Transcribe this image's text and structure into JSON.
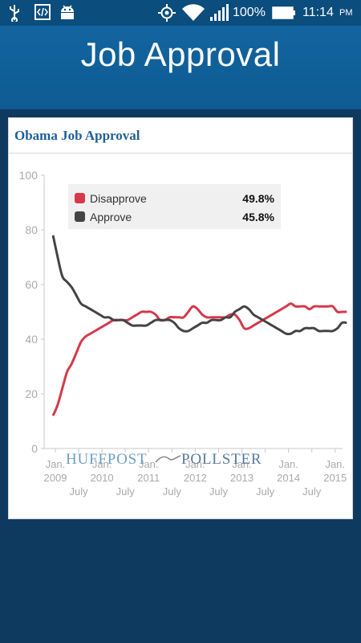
{
  "status_bar": {
    "battery_percent": "100%",
    "time": "11:14",
    "ampm": "PM",
    "icons": [
      "usb-icon",
      "code-icon",
      "android-icon",
      "gps-icon",
      "wifi-icon",
      "signal-icon",
      "battery-icon"
    ]
  },
  "header": {
    "title": "Job Approval"
  },
  "card": {
    "title": "Obama Job Approval"
  },
  "legend": [
    {
      "name": "Disapprove",
      "value": "49.8%",
      "color": "#d5394a"
    },
    {
      "name": "Approve",
      "value": "45.8%",
      "color": "#444444"
    }
  ],
  "watermark": {
    "left": "HUFFPOST",
    "right": "POLLSTER"
  },
  "chart_data": {
    "type": "line",
    "ylim": [
      0,
      100
    ],
    "yticks": [
      "0",
      "20",
      "40",
      "60",
      "80",
      "100"
    ],
    "xlim": [
      2009.0,
      2015.4
    ],
    "xtick_labels": [
      {
        "x": 2009.0,
        "lines": [
          "Jan.",
          "2009"
        ]
      },
      {
        "x": 2009.5,
        "lines": [
          "July"
        ]
      },
      {
        "x": 2010.0,
        "lines": [
          "Jan.",
          "2010"
        ]
      },
      {
        "x": 2010.5,
        "lines": [
          "July"
        ]
      },
      {
        "x": 2011.0,
        "lines": [
          "Jan.",
          "2011"
        ]
      },
      {
        "x": 2011.5,
        "lines": [
          "July"
        ]
      },
      {
        "x": 2012.0,
        "lines": [
          "Jan.",
          "2012"
        ]
      },
      {
        "x": 2012.5,
        "lines": [
          "July"
        ]
      },
      {
        "x": 2013.0,
        "lines": [
          "Jan.",
          "2013"
        ]
      },
      {
        "x": 2013.5,
        "lines": [
          "July"
        ]
      },
      {
        "x": 2014.0,
        "lines": [
          "Jan.",
          "2014"
        ]
      },
      {
        "x": 2014.5,
        "lines": [
          "July"
        ]
      },
      {
        "x": 2015.0,
        "lines": [
          "Jan.",
          "2015"
        ]
      }
    ],
    "series": [
      {
        "name": "Disapprove",
        "color": "#d5394a",
        "x": [
          2008.95,
          2009.05,
          2009.15,
          2009.25,
          2009.35,
          2009.45,
          2009.55,
          2009.65,
          2009.75,
          2009.85,
          2009.95,
          2010.05,
          2010.15,
          2010.25,
          2010.35,
          2010.45,
          2010.55,
          2010.65,
          2010.75,
          2010.85,
          2010.95,
          2011.05,
          2011.15,
          2011.25,
          2011.35,
          2011.45,
          2011.55,
          2011.65,
          2011.75,
          2011.85,
          2011.95,
          2012.05,
          2012.15,
          2012.25,
          2012.35,
          2012.45,
          2012.55,
          2012.65,
          2012.75,
          2012.85,
          2012.95,
          2013.05,
          2013.15,
          2013.25,
          2013.35,
          2013.45,
          2013.55,
          2013.65,
          2013.75,
          2013.85,
          2013.95,
          2014.05,
          2014.15,
          2014.25,
          2014.35,
          2014.45,
          2014.55,
          2014.65,
          2014.75,
          2014.85,
          2014.95,
          2015.05,
          2015.15,
          2015.25
        ],
        "values": [
          12,
          16,
          22,
          28,
          31,
          35,
          39,
          41,
          42,
          43,
          44,
          45,
          46,
          47,
          47,
          47,
          47,
          48,
          49,
          50,
          50,
          50,
          49,
          47,
          47,
          48,
          48,
          48,
          48,
          50,
          52,
          51,
          49,
          48,
          48,
          48,
          48,
          48,
          49,
          49,
          47,
          44,
          44,
          45,
          46,
          47,
          48,
          49,
          50,
          51,
          52,
          53,
          52,
          52,
          52,
          51,
          52,
          52,
          52,
          52,
          52,
          50,
          50,
          50
        ]
      },
      {
        "name": "Approve",
        "color": "#444444",
        "x": [
          2008.95,
          2009.05,
          2009.15,
          2009.25,
          2009.35,
          2009.45,
          2009.55,
          2009.65,
          2009.75,
          2009.85,
          2009.95,
          2010.05,
          2010.15,
          2010.25,
          2010.35,
          2010.45,
          2010.55,
          2010.65,
          2010.75,
          2010.85,
          2010.95,
          2011.05,
          2011.15,
          2011.25,
          2011.35,
          2011.45,
          2011.55,
          2011.65,
          2011.75,
          2011.85,
          2011.95,
          2012.05,
          2012.15,
          2012.25,
          2012.35,
          2012.45,
          2012.55,
          2012.65,
          2012.75,
          2012.85,
          2012.95,
          2013.05,
          2013.15,
          2013.25,
          2013.35,
          2013.45,
          2013.55,
          2013.65,
          2013.75,
          2013.85,
          2013.95,
          2014.05,
          2014.15,
          2014.25,
          2014.35,
          2014.45,
          2014.55,
          2014.65,
          2014.75,
          2014.85,
          2014.95,
          2015.05,
          2015.15,
          2015.25
        ],
        "values": [
          78,
          70,
          63,
          61,
          59,
          56,
          53,
          52,
          51,
          50,
          49,
          48,
          48,
          47,
          47,
          47,
          46,
          45,
          45,
          45,
          45,
          46,
          47,
          47,
          47,
          47,
          46,
          44,
          43,
          43,
          44,
          45,
          46,
          46,
          47,
          47,
          47,
          48,
          48,
          50,
          51,
          52,
          51,
          49,
          48,
          47,
          46,
          45,
          44,
          43,
          42,
          42,
          43,
          43,
          44,
          44,
          44,
          43,
          43,
          43,
          43,
          44,
          46,
          46
        ]
      }
    ]
  }
}
